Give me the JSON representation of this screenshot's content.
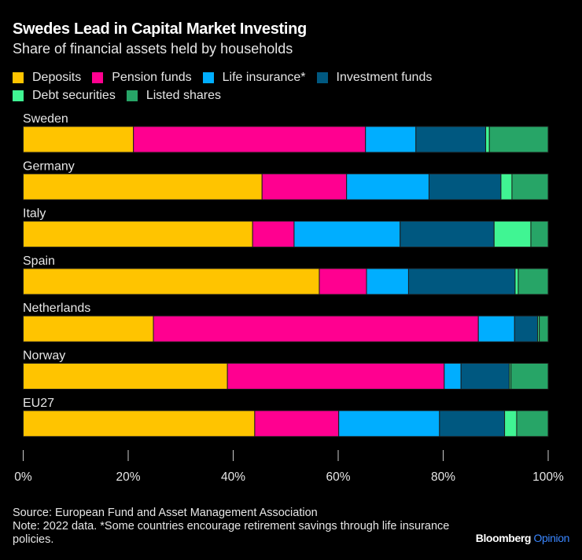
{
  "header": {
    "title": "Swedes Lead in Capital Market Investing",
    "subtitle": "Share of financial assets held by households"
  },
  "footer": {
    "source": "Source: European Fund and Asset Management Association",
    "note": "Note: 2022 data. *Some countries encourage retirement savings through life insurance policies.",
    "brand": "Bloomberg",
    "brand_suffix": "Opinion"
  },
  "chart_data": {
    "type": "bar",
    "orientation": "horizontal",
    "stacked": true,
    "title": "Swedes Lead in Capital Market Investing",
    "subtitle": "Share of financial assets held by households",
    "xlabel": "",
    "ylabel": "",
    "xlim": [
      0,
      100
    ],
    "x_ticks": [
      0,
      20,
      40,
      60,
      80,
      100
    ],
    "x_tick_labels": [
      "0%",
      "20%",
      "40%",
      "60%",
      "80%",
      "100%"
    ],
    "grid": false,
    "legend_position": "top-left",
    "categories": [
      "Sweden",
      "Germany",
      "Italy",
      "Spain",
      "Netherlands",
      "Norway",
      "EU27"
    ],
    "series": [
      {
        "name": "Deposits",
        "color": "#FFC400",
        "values": [
          21.0,
          45.5,
          43.7,
          56.4,
          24.8,
          38.9,
          44.1
        ]
      },
      {
        "name": "Pension funds",
        "color": "#FF0090",
        "values": [
          44.2,
          16.1,
          7.9,
          9.0,
          61.9,
          41.3,
          16.0
        ]
      },
      {
        "name": "Life insurance*",
        "color": "#00AEFF",
        "values": [
          9.6,
          15.7,
          20.2,
          8.0,
          6.9,
          3.2,
          19.2
        ]
      },
      {
        "name": "Investment funds",
        "color": "#005880",
        "values": [
          13.3,
          13.7,
          17.9,
          20.3,
          4.4,
          9.2,
          12.4
        ]
      },
      {
        "name": "Debt securities",
        "color": "#40F593",
        "values": [
          0.7,
          2.1,
          7.0,
          0.6,
          0.3,
          0.3,
          2.3
        ]
      },
      {
        "name": "Listed shares",
        "color": "#27A567",
        "values": [
          11.2,
          6.9,
          3.3,
          5.7,
          1.7,
          7.1,
          6.0
        ]
      }
    ]
  }
}
